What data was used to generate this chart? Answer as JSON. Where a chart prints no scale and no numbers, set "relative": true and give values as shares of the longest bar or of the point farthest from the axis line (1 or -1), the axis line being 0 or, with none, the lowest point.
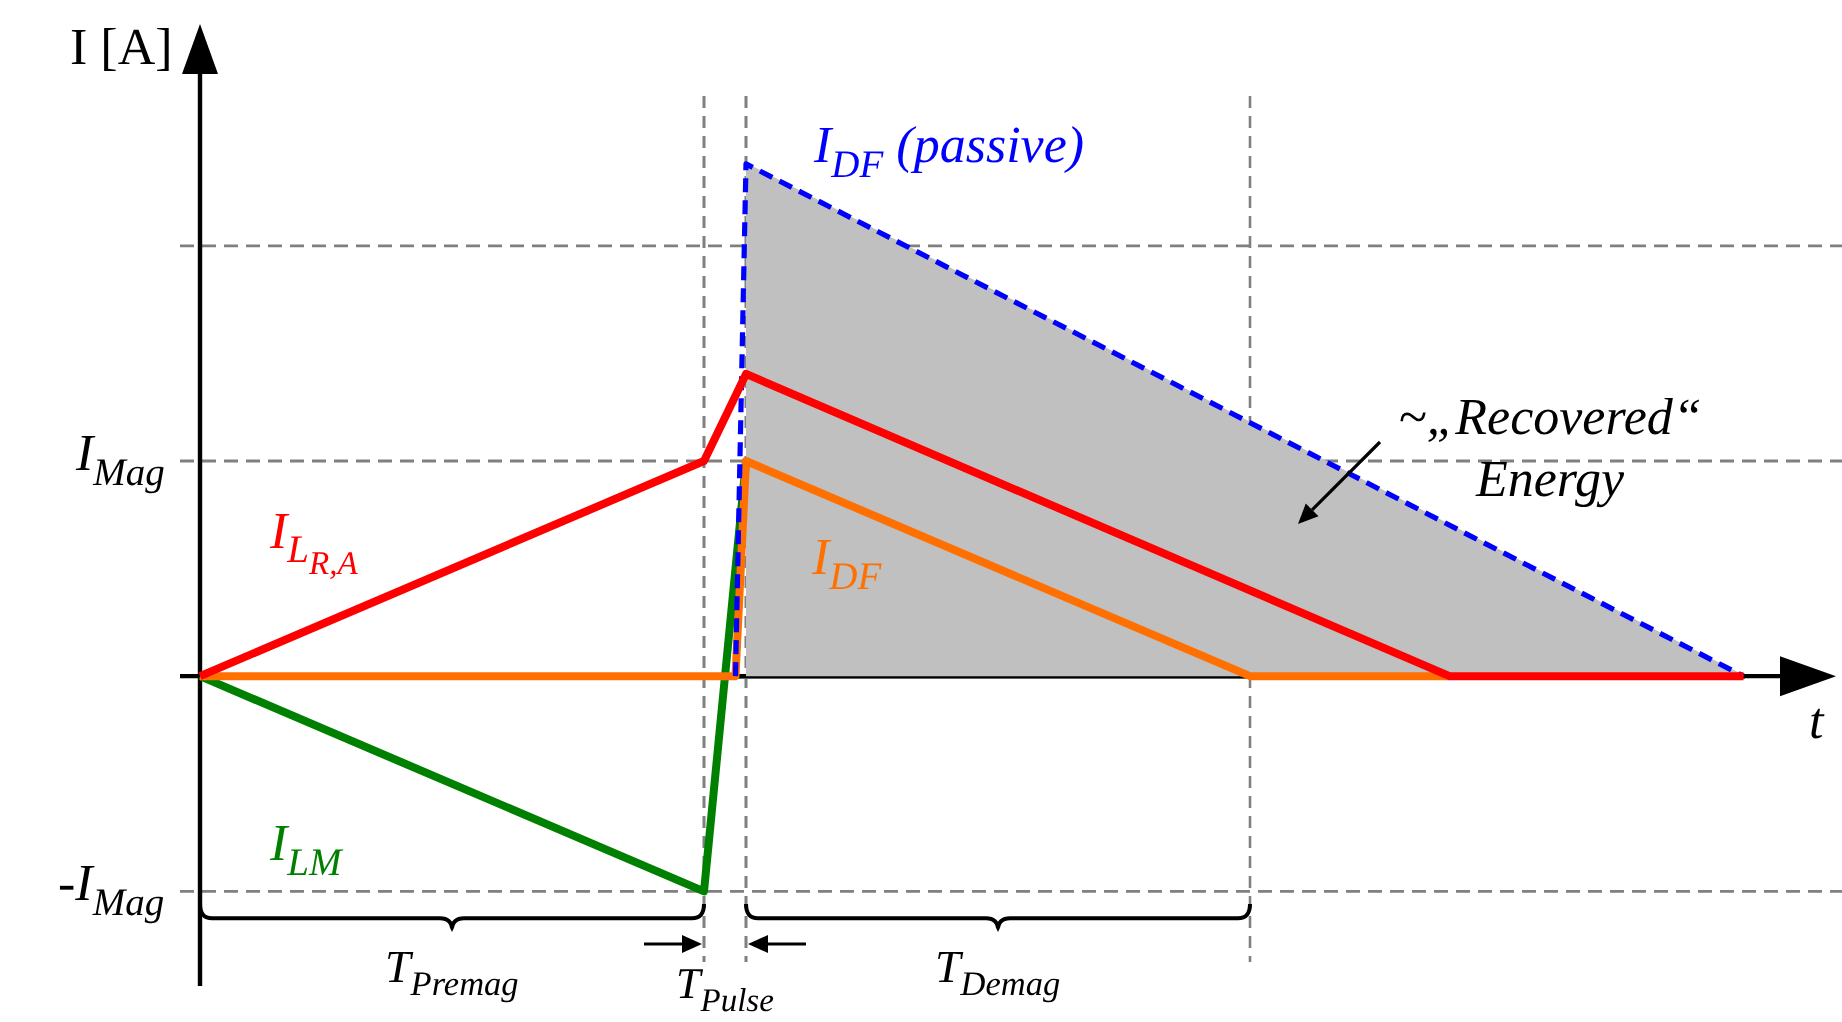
{
  "chart_data": {
    "type": "line",
    "relative": true,
    "xlabel": "t",
    "ylabel": "I [A]",
    "categories": [
      null,
      null,
      null,
      null,
      null,
      null,
      null,
      null,
      null,
      null,
      null,
      null,
      null,
      null,
      null,
      null,
      null,
      null,
      null,
      null,
      null,
      null,
      null,
      null,
      null,
      null,
      null,
      null,
      null,
      null,
      null,
      null,
      null,
      null,
      null,
      null,
      null,
      null,
      null,
      null,
      null,
      null,
      null,
      null,
      null,
      null,
      null,
      null,
      null,
      null,
      null,
      null,
      null,
      null,
      null,
      null,
      null,
      null,
      null,
      null,
      null,
      null,
      null,
      null,
      null,
      null,
      null,
      null,
      null,
      null,
      null,
      null,
      null,
      null,
      null,
      null,
      null,
      null,
      null,
      null,
      null,
      null,
      null,
      null,
      null,
      null,
      null,
      null,
      null,
      null,
      null,
      null,
      null,
      null,
      null,
      null,
      null,
      null,
      null,
      null,
      null,
      null,
      null,
      null,
      null,
      null,
      null,
      null,
      null,
      null,
      null,
      null,
      null,
      null,
      null,
      null,
      null,
      null,
      null,
      null,
      null,
      null,
      null,
      null,
      null,
      null,
      null,
      null,
      null,
      null,
      null,
      null,
      null,
      null,
      null,
      null,
      null,
      null,
      null,
      null,
      null,
      null,
      null,
      null,
      null,
      null,
      null,
      null
    ],
    "series": [
      {
        "type": "area",
        "color": "#c0c0c0",
        "values": [
          null,
          null,
          null,
          null,
          null,
          null,
          null,
          null,
          null,
          null,
          null,
          null,
          null,
          null,
          null,
          null,
          null,
          null,
          null,
          null,
          null,
          null,
          null,
          null,
          null,
          null,
          null,
          null,
          null,
          null,
          null,
          null,
          null,
          null,
          null,
          null,
          null,
          null,
          null,
          null,
          null,
          null,
          null,
          null,
          null,
          null,
          null,
          null,
          null,
          null,
          null,
          null,
          1,
          null,
          null,
          null,
          null,
          null,
          null,
          null,
          null,
          null,
          null,
          null,
          null,
          null,
          null,
          null,
          null,
          null,
          null,
          null,
          null,
          null,
          null,
          null,
          null,
          null,
          null,
          null,
          null,
          null,
          null,
          null,
          null,
          null,
          null,
          null,
          null,
          null,
          null,
          null,
          null,
          null,
          null,
          null,
          null,
          null,
          null,
          null,
          null,
          null,
          null,
          null,
          null,
          null,
          null,
          null,
          null,
          null,
          null,
          null,
          null,
          null,
          null,
          null,
          null,
          null,
          null,
          null,
          null,
          null,
          null,
          null,
          null,
          null,
          null,
          null,
          null,
          null,
          null,
          null,
          null,
          null,
          null,
          null,
          null,
          null,
          null,
          null,
          null,
          null,
          null,
          null,
          null,
          null,
          null,
          0
        ]
      },
      {
        "name": "I$_{LM}$",
        "color": "#008000",
        "values": [
          0,
          null,
          null,
          null,
          null,
          null,
          null,
          null,
          null,
          null,
          null,
          null,
          null,
          null,
          null,
          null,
          null,
          null,
          null,
          null,
          null,
          null,
          null,
          null,
          null,
          null,
          null,
          null,
          null,
          null,
          null,
          null,
          null,
          null,
          null,
          null,
          null,
          null,
          null,
          null,
          null,
          null,
          null,
          null,
          null,
          null,
          null,
          null,
          -0.42,
          null,
          null,
          null,
          0.42,
          null,
          null,
          null,
          null,
          null,
          null,
          null,
          null,
          null,
          null,
          null,
          null,
          null,
          null,
          null,
          null,
          null,
          null,
          null,
          null,
          null,
          null,
          null,
          null,
          null,
          null,
          null,
          null,
          null,
          null,
          null,
          null,
          null,
          null,
          null,
          null,
          null,
          null,
          null,
          null,
          null,
          null,
          null,
          null,
          null,
          null,
          null,
          null,
          null,
          null,
          null,
          null,
          null,
          null,
          null,
          null,
          null,
          null,
          null,
          null,
          null,
          null,
          null,
          null,
          null,
          null,
          null,
          null,
          null,
          null,
          null,
          null,
          null,
          null,
          null,
          null,
          null,
          null,
          null,
          null,
          null,
          null,
          null,
          null,
          null,
          null,
          null,
          null,
          null,
          null,
          null,
          null,
          null,
          null,
          null
        ]
      },
      {
        "name": "I$_{DF}$",
        "color": "#ff7000",
        "values": [
          0,
          null,
          null,
          null,
          null,
          null,
          null,
          null,
          null,
          null,
          null,
          null,
          null,
          null,
          null,
          null,
          null,
          null,
          null,
          null,
          null,
          null,
          null,
          null,
          null,
          null,
          null,
          null,
          null,
          null,
          null,
          null,
          null,
          null,
          null,
          null,
          null,
          null,
          null,
          null,
          null,
          null,
          null,
          null,
          null,
          null,
          null,
          null,
          null,
          null,
          null,
          0,
          0.42,
          null,
          null,
          null,
          null,
          null,
          null,
          null,
          null,
          null,
          null,
          null,
          null,
          null,
          null,
          null,
          null,
          null,
          null,
          null,
          null,
          null,
          null,
          null,
          null,
          null,
          null,
          null,
          null,
          null,
          null,
          null,
          null,
          null,
          null,
          null,
          null,
          null,
          null,
          null,
          null,
          null,
          null,
          null,
          null,
          null,
          null,
          null,
          0,
          null,
          null,
          null,
          null,
          null,
          null,
          null,
          null,
          null,
          null,
          null,
          null,
          null,
          null,
          null,
          null,
          null,
          null,
          0,
          null,
          null,
          null,
          null,
          null,
          null,
          null,
          null,
          null,
          null,
          null,
          null,
          null,
          null,
          null,
          null,
          null,
          null,
          null,
          null,
          null,
          null,
          null,
          null,
          null,
          null,
          null,
          null
        ]
      },
      {
        "name": "I$_{DF}$ (passive)",
        "color": "#0000ff",
        "line_style": "dashed",
        "values": [
          null,
          null,
          null,
          null,
          null,
          null,
          null,
          null,
          null,
          null,
          null,
          null,
          null,
          null,
          null,
          null,
          null,
          null,
          null,
          null,
          null,
          null,
          null,
          null,
          null,
          null,
          null,
          null,
          null,
          null,
          null,
          null,
          null,
          null,
          null,
          null,
          null,
          null,
          null,
          null,
          null,
          null,
          null,
          null,
          null,
          null,
          null,
          null,
          null,
          null,
          null,
          0,
          1,
          null,
          null,
          null,
          null,
          null,
          null,
          null,
          null,
          null,
          null,
          null,
          null,
          null,
          null,
          null,
          null,
          null,
          null,
          null,
          null,
          null,
          null,
          null,
          null,
          null,
          null,
          null,
          null,
          null,
          null,
          null,
          null,
          null,
          null,
          null,
          null,
          null,
          null,
          null,
          null,
          null,
          null,
          null,
          null,
          null,
          null,
          null,
          null,
          null,
          null,
          null,
          null,
          null,
          null,
          null,
          null,
          null,
          null,
          null,
          null,
          null,
          null,
          null,
          null,
          null,
          null,
          null,
          null,
          null,
          null,
          null,
          null,
          null,
          null,
          null,
          null,
          null,
          null,
          null,
          null,
          null,
          null,
          null,
          null,
          null,
          null,
          null,
          null,
          null,
          null,
          null,
          null,
          null,
          null,
          0
        ]
      },
      {
        "name": "I$_{L}$$_{R,A}$",
        "color": "#ff0000",
        "values": [
          0,
          null,
          null,
          null,
          null,
          null,
          null,
          null,
          null,
          null,
          null,
          null,
          null,
          null,
          null,
          null,
          null,
          null,
          null,
          null,
          null,
          null,
          null,
          null,
          null,
          null,
          null,
          null,
          null,
          null,
          null,
          null,
          null,
          null,
          null,
          null,
          null,
          null,
          null,
          null,
          null,
          null,
          null,
          null,
          null,
          null,
          null,
          null,
          0.42,
          null,
          null,
          null,
          0.59,
          null,
          null,
          null,
          null,
          null,
          null,
          null,
          null,
          null,
          null,
          null,
          null,
          null,
          null,
          null,
          null,
          null,
          null,
          null,
          null,
          null,
          null,
          null,
          null,
          null,
          null,
          null,
          null,
          null,
          null,
          null,
          null,
          null,
          null,
          null,
          null,
          null,
          null,
          null,
          null,
          null,
          null,
          null,
          null,
          null,
          null,
          null,
          null,
          null,
          null,
          null,
          null,
          null,
          null,
          null,
          null,
          null,
          null,
          null,
          null,
          null,
          null,
          null,
          null,
          null,
          null,
          0,
          null,
          null,
          null,
          null,
          null,
          null,
          null,
          null,
          null,
          null,
          null,
          null,
          null,
          null,
          null,
          null,
          null,
          null,
          null,
          null,
          null,
          null,
          null,
          null,
          null,
          null,
          null,
          0
        ]
      }
    ],
    "ref_lines": [
      {
        "axis": "y",
        "value": 0.84,
        "color": "#808080",
        "line_style": "dashed"
      },
      {
        "axis": "y",
        "value": 0.42,
        "label": "I$_{Mag}$",
        "color": "#808080",
        "line_style": "dashed"
      },
      {
        "axis": "y",
        "value": -0.42,
        "label": "-I$_{Mag}$",
        "color": "#808080",
        "line_style": "dashed"
      }
    ],
    "annotations": [
      "~„Recovered“ Energy",
      "T$_{Premag}$",
      "T$_{Pulse}$",
      "T$_{Demag}$"
    ]
  }
}
